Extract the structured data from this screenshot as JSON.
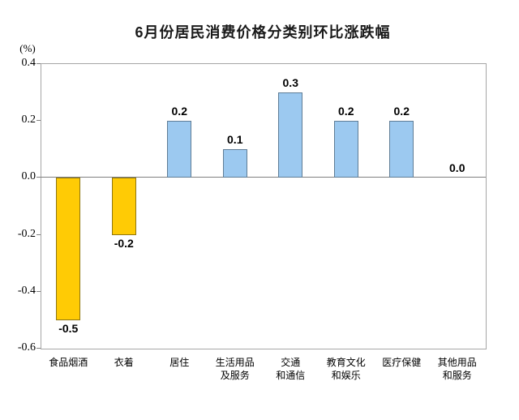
{
  "chart_data": {
    "type": "bar",
    "title": "6月份居民消费价格分类别环比涨跌幅",
    "unit_label": "(%)",
    "categories": [
      "食品烟酒",
      "衣着",
      "居住",
      "生活用品\n及服务",
      "交通\n和通信",
      "教育文化\n和娱乐",
      "医疗保健",
      "其他用品\n和服务"
    ],
    "values": [
      -0.5,
      -0.2,
      0.2,
      0.1,
      0.3,
      0.2,
      0.2,
      0.0
    ],
    "value_labels": [
      "-0.5",
      "-0.2",
      "0.2",
      "0.1",
      "0.3",
      "0.2",
      "0.2",
      "0.0"
    ],
    "ylim": [
      -0.6,
      0.4
    ],
    "ytick_labels": [
      "0.4",
      "0.2",
      "0.0",
      "-0.2",
      "-0.4",
      "-0.6"
    ],
    "yticks": [
      0.4,
      0.2,
      0.0,
      -0.2,
      -0.4,
      -0.6
    ],
    "grid": false,
    "legend": "none",
    "colors": {
      "positive_fill": "#9cc9f0",
      "positive_border": "#5f7d96",
      "negative_fill": "#ffcb05",
      "negative_border": "#8e7612",
      "axis_line": "#808080",
      "plot_border": "#a6a6a6",
      "text": "#000000",
      "title_text": "#1a1a1a"
    }
  }
}
